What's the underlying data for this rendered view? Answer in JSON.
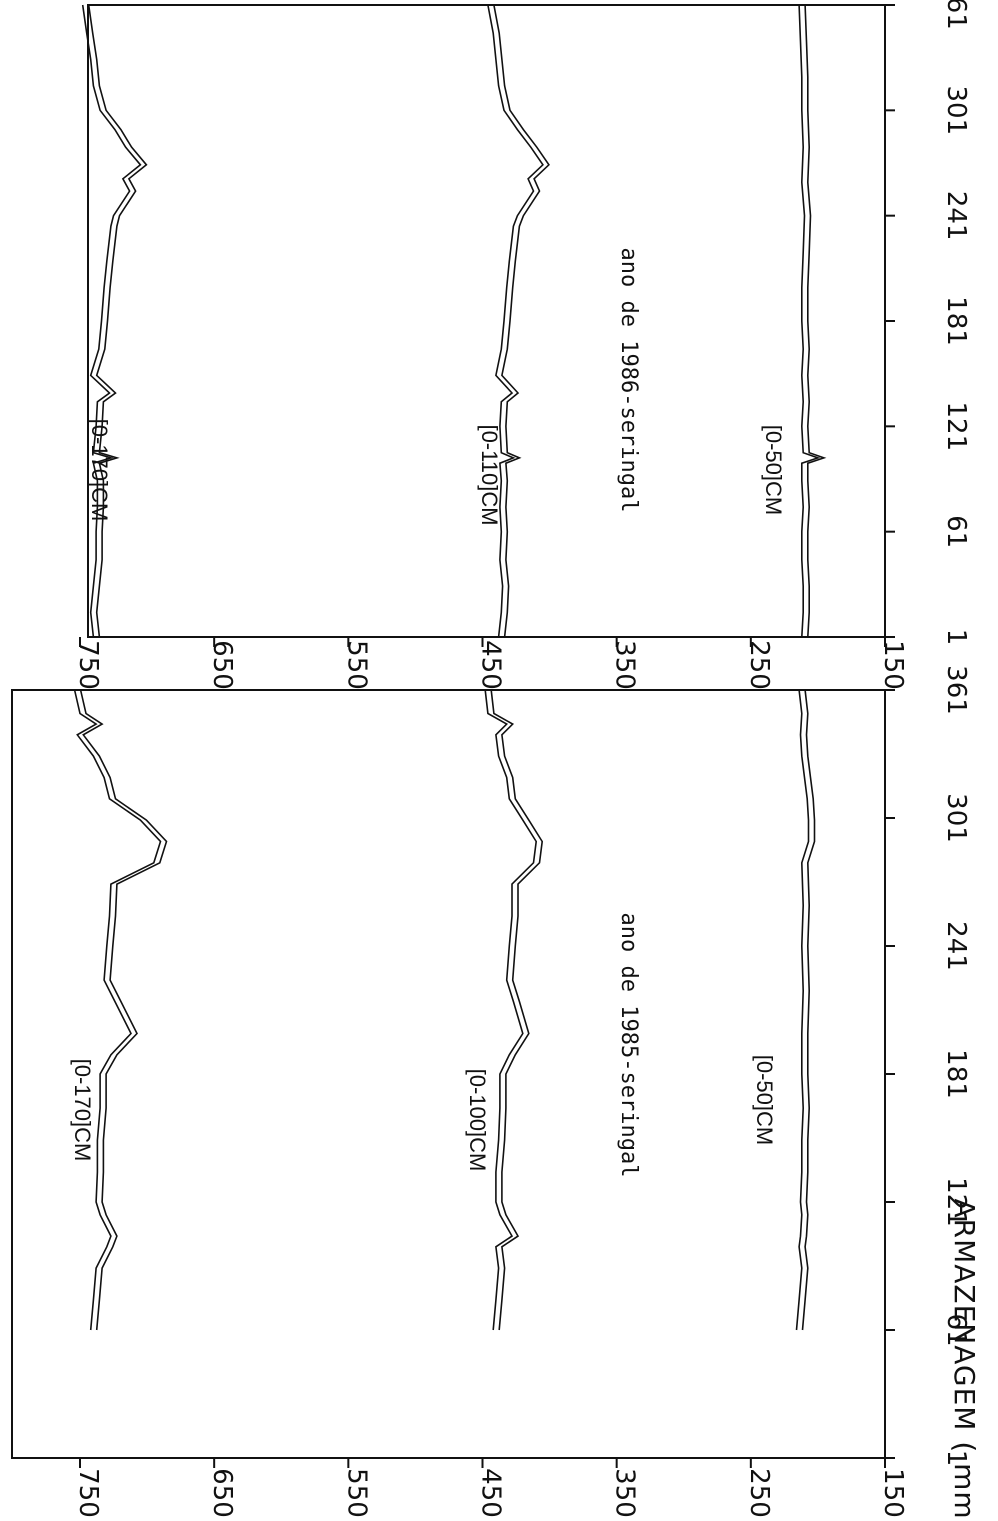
{
  "y_axis_label": "ARMAZENAGEM ( mm )",
  "chart_data": [
    {
      "type": "line",
      "title": "ano de 1985-seringal",
      "xlabel": "",
      "ylabel": "ARMAZENAGEM ( mm )",
      "xlim": [
        1,
        361
      ],
      "ylim": [
        150,
        750
      ],
      "x_ticks": [
        1,
        61,
        121,
        181,
        241,
        301,
        361
      ],
      "y_ticks": [
        150,
        250,
        350,
        450,
        550,
        650,
        750
      ],
      "grid": false,
      "series": [
        {
          "name": "[0-170]CM",
          "x": [
            61,
            75,
            90,
            100,
            105,
            115,
            121,
            135,
            150,
            165,
            181,
            190,
            200,
            215,
            225,
            241,
            255,
            270,
            280,
            290,
            300,
            310,
            320,
            330,
            340,
            345,
            350,
            361
          ],
          "values": [
            742,
            740,
            738,
            730,
            727,
            735,
            738,
            737,
            737,
            735,
            735,
            727,
            712,
            724,
            732,
            730,
            728,
            727,
            695,
            690,
            705,
            728,
            732,
            740,
            752,
            738,
            750,
            754
          ]
        },
        {
          "name": "[0-100]CM",
          "x": [
            61,
            75,
            90,
            100,
            105,
            115,
            121,
            135,
            150,
            165,
            181,
            190,
            200,
            215,
            225,
            241,
            255,
            270,
            280,
            290,
            300,
            310,
            320,
            330,
            340,
            345,
            350,
            361
          ],
          "values": [
            442,
            440,
            438,
            440,
            428,
            437,
            440,
            440,
            438,
            437,
            437,
            430,
            420,
            427,
            432,
            430,
            428,
            428,
            412,
            410,
            420,
            430,
            432,
            438,
            440,
            432,
            446,
            448
          ]
        },
        {
          "name": "[0-50]CM",
          "x": [
            61,
            75,
            90,
            100,
            105,
            115,
            121,
            135,
            150,
            165,
            181,
            200,
            220,
            241,
            260,
            280,
            290,
            300,
            310,
            320,
            330,
            340,
            350,
            361
          ],
          "values": [
            216,
            214,
            212,
            214,
            213,
            212,
            213,
            212,
            212,
            211,
            212,
            212,
            211,
            212,
            211,
            212,
            207,
            207,
            208,
            210,
            212,
            213,
            212,
            214
          ]
        }
      ]
    },
    {
      "type": "line",
      "title": "ano de 1986-seringal",
      "xlabel": "",
      "ylabel": "ARMAZENAGEM ( mm )",
      "xlim": [
        1,
        361
      ],
      "ylim": [
        150,
        750
      ],
      "x_ticks": [
        1,
        61,
        121,
        181,
        241,
        301,
        361
      ],
      "y_ticks": [
        150,
        250,
        350,
        450,
        550,
        650,
        750
      ],
      "grid": false,
      "series": [
        {
          "name": "[0-170]CM",
          "x": [
            1,
            15,
            30,
            45,
            61,
            75,
            90,
            100,
            103,
            106,
            121,
            135,
            140,
            150,
            165,
            181,
            200,
            215,
            235,
            241,
            255,
            262,
            270,
            280,
            290,
            301,
            315,
            330,
            345,
            361
          ],
          "values": [
            740,
            742,
            740,
            738,
            738,
            737,
            737,
            740,
            727,
            740,
            738,
            737,
            728,
            742,
            736,
            734,
            732,
            730,
            727,
            725,
            713,
            718,
            705,
            716,
            724,
            735,
            740,
            742,
            745,
            748
          ]
        },
        {
          "name": "[0-110]CM",
          "x": [
            1,
            15,
            30,
            45,
            61,
            75,
            90,
            100,
            103,
            106,
            121,
            135,
            140,
            150,
            165,
            181,
            200,
            215,
            235,
            241,
            255,
            262,
            270,
            280,
            290,
            301,
            315,
            330,
            345,
            361
          ],
          "values": [
            438,
            436,
            435,
            437,
            436,
            437,
            436,
            437,
            427,
            436,
            437,
            436,
            428,
            440,
            436,
            434,
            432,
            430,
            427,
            424,
            412,
            416,
            405,
            414,
            424,
            434,
            438,
            440,
            442,
            446
          ]
        },
        {
          "name": "[0-50]CM",
          "x": [
            1,
            15,
            30,
            45,
            61,
            75,
            90,
            100,
            103,
            106,
            121,
            135,
            150,
            165,
            181,
            200,
            220,
            241,
            260,
            280,
            301,
            320,
            340,
            361
          ],
          "values": [
            212,
            211,
            211,
            212,
            212,
            211,
            212,
            212,
            200,
            211,
            212,
            211,
            212,
            211,
            212,
            212,
            211,
            210,
            212,
            211,
            212,
            212,
            213,
            214
          ]
        }
      ]
    }
  ]
}
